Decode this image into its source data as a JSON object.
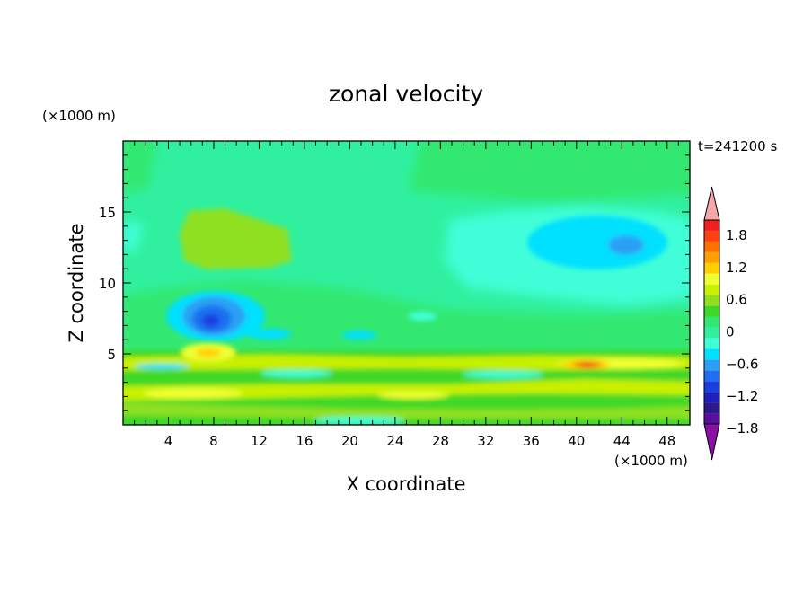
{
  "chart_data": {
    "type": "heatmap",
    "title": "zonal velocity",
    "time_label": "t=241200 s",
    "xlabel": "X coordinate",
    "ylabel": "Z coordinate",
    "x_unit": "(×1000 m)",
    "y_unit": "(×1000 m)",
    "xlim": [
      0,
      50
    ],
    "ylim": [
      0,
      20
    ],
    "x_ticks": [
      4,
      8,
      12,
      16,
      20,
      24,
      28,
      32,
      36,
      40,
      44,
      48
    ],
    "y_ticks": [
      5,
      10,
      15
    ],
    "colorbar": {
      "tick_labels": [
        "1.8",
        "1.2",
        "0.6",
        "0",
        "−0.6",
        "−1.2",
        "−1.8"
      ],
      "tick_values": [
        1.8,
        1.2,
        0.6,
        0,
        -0.6,
        -1.2,
        -1.8
      ],
      "levels": [
        -1.8,
        -1.6,
        -1.4,
        -1.2,
        -1.0,
        -0.8,
        -0.6,
        -0.4,
        -0.2,
        0,
        0.2,
        0.4,
        0.6,
        0.8,
        1.0,
        1.2,
        1.4,
        1.6,
        1.8,
        2.0
      ],
      "colors": [
        "#5a0fa0",
        "#2a1a8c",
        "#1f1fc0",
        "#1a3fe0",
        "#1f6ff0",
        "#2aa0f5",
        "#00e0ff",
        "#40ffd8",
        "#30f0a0",
        "#30e870",
        "#40d828",
        "#90e020",
        "#c8f000",
        "#f0ff30",
        "#ffd000",
        "#ffa000",
        "#ff7000",
        "#ff4010",
        "#f02020",
        "#f5a0a0"
      ],
      "over_color": "#f5a8a8",
      "under_color": "#8a10a8"
    },
    "features": [
      {
        "kind": "max",
        "x": 40.5,
        "z": 4.2,
        "value": 1.4
      },
      {
        "kind": "max",
        "x": 7.5,
        "z": 5.0,
        "value": 0.9
      },
      {
        "kind": "min",
        "x": 7.8,
        "z": 7.4,
        "value": -1.2
      },
      {
        "kind": "min",
        "x": 44.5,
        "z": 12.5,
        "value": -0.8
      },
      {
        "kind": "max",
        "x": 8.0,
        "z": 13.0,
        "value": 0.4
      }
    ]
  }
}
